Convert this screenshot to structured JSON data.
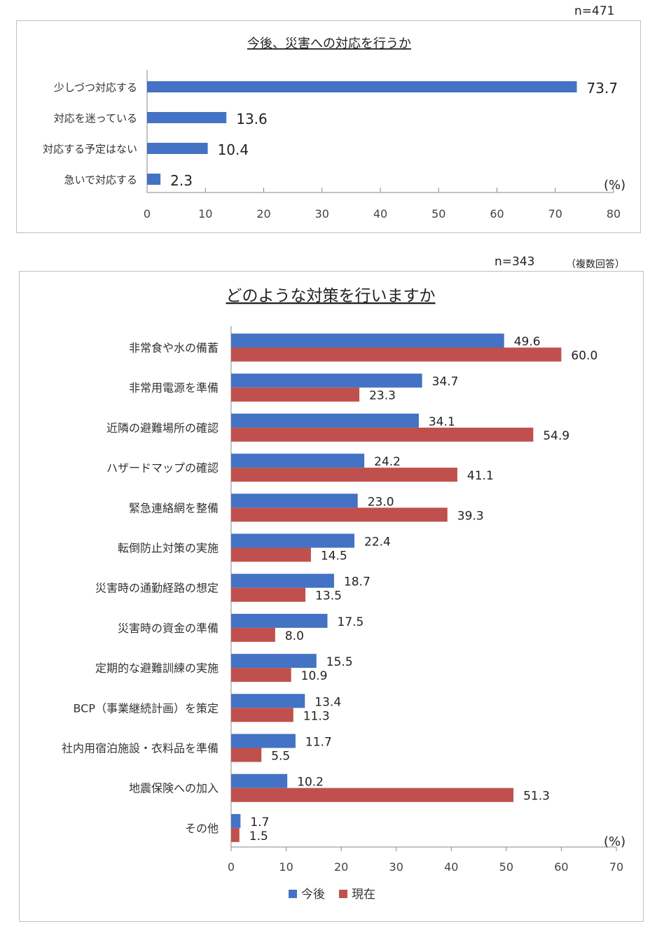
{
  "chart_data": [
    {
      "type": "bar",
      "orientation": "horizontal",
      "note": "n=471",
      "title": "今後、災害への対応を行うか",
      "unit_label": "(%)",
      "categories": [
        "少しづつ対応する",
        "対応を迷っている",
        "対応する予定はない",
        "急いで対応する"
      ],
      "series": [
        {
          "values": [
            73.7,
            13.6,
            10.4,
            2.3
          ],
          "color": "#4472c4"
        }
      ],
      "xlim": [
        0,
        80
      ],
      "xticks": [
        0,
        10,
        20,
        30,
        40,
        50,
        60,
        70,
        80
      ],
      "grid": false,
      "legend": "none"
    },
    {
      "type": "bar",
      "orientation": "horizontal",
      "note": "n=343",
      "note2": "（複数回答）",
      "title": "どのような対策を行いますか",
      "unit_label": "(%)",
      "categories": [
        "非常食や水の備蓄",
        "非常用電源を準備",
        "近隣の避難場所の確認",
        "ハザードマップの確認",
        "緊急連絡網を整備",
        "転倒防止対策の実施",
        "災害時の通勤経路の想定",
        "災害時の資金の準備",
        "定期的な避難訓練の実施",
        "BCP（事業継続計画）を策定",
        "社内用宿泊施設・衣料品を準備",
        "地震保険への加入",
        "その他"
      ],
      "series": [
        {
          "name": "今後",
          "color": "#4472c4",
          "values": [
            49.6,
            34.7,
            34.1,
            24.2,
            23.0,
            22.4,
            18.7,
            17.5,
            15.5,
            13.4,
            11.7,
            10.2,
            1.7
          ]
        },
        {
          "name": "現在",
          "color": "#c0504d",
          "values": [
            60.0,
            23.3,
            54.9,
            41.1,
            39.3,
            14.5,
            13.5,
            8.0,
            10.9,
            11.3,
            5.5,
            51.3,
            1.5
          ]
        }
      ],
      "xlim": [
        0,
        70
      ],
      "xticks": [
        0,
        10,
        20,
        30,
        40,
        50,
        60,
        70
      ],
      "grid": false,
      "legend": "bottom"
    }
  ]
}
